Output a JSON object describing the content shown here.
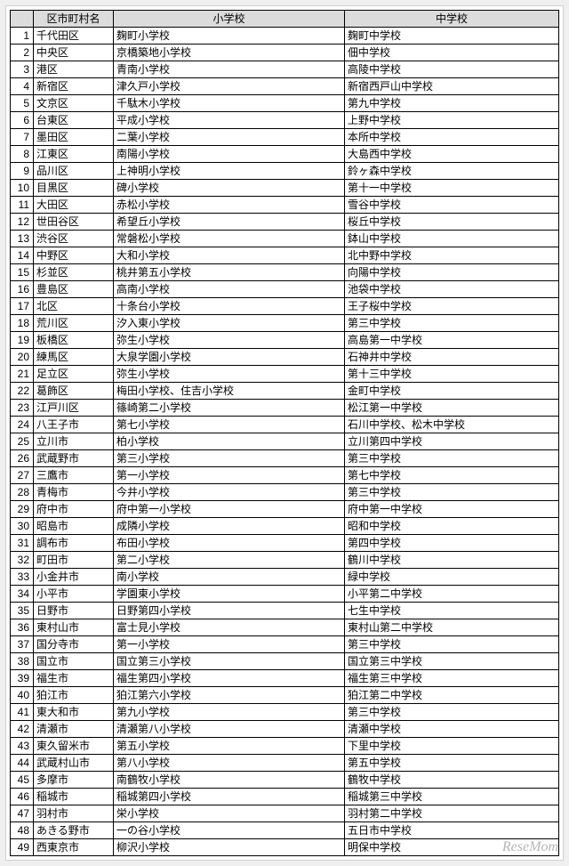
{
  "watermark": "ReseMom",
  "table": {
    "headers": {
      "num": "",
      "ward": "区市町村名",
      "elem": "小学校",
      "jhs": "中学校"
    },
    "rows": [
      {
        "n": "1",
        "ward": "千代田区",
        "elem": "麹町小学校",
        "jhs": "麹町中学校"
      },
      {
        "n": "2",
        "ward": "中央区",
        "elem": "京橋築地小学校",
        "jhs": "佃中学校"
      },
      {
        "n": "3",
        "ward": "港区",
        "elem": "青南小学校",
        "jhs": "高陵中学校"
      },
      {
        "n": "4",
        "ward": "新宿区",
        "elem": "津久戸小学校",
        "jhs": "新宿西戸山中学校"
      },
      {
        "n": "5",
        "ward": "文京区",
        "elem": "千駄木小学校",
        "jhs": "第九中学校"
      },
      {
        "n": "6",
        "ward": "台東区",
        "elem": "平成小学校",
        "jhs": "上野中学校"
      },
      {
        "n": "7",
        "ward": "墨田区",
        "elem": "二葉小学校",
        "jhs": "本所中学校"
      },
      {
        "n": "8",
        "ward": "江東区",
        "elem": "南陽小学校",
        "jhs": "大島西中学校"
      },
      {
        "n": "9",
        "ward": "品川区",
        "elem": "上神明小学校",
        "jhs": "鈴ヶ森中学校"
      },
      {
        "n": "10",
        "ward": "目黒区",
        "elem": "碑小学校",
        "jhs": "第十一中学校"
      },
      {
        "n": "11",
        "ward": "大田区",
        "elem": "赤松小学校",
        "jhs": "雪谷中学校"
      },
      {
        "n": "12",
        "ward": "世田谷区",
        "elem": "希望丘小学校",
        "jhs": "桜丘中学校"
      },
      {
        "n": "13",
        "ward": "渋谷区",
        "elem": "常磐松小学校",
        "jhs": "鉢山中学校"
      },
      {
        "n": "14",
        "ward": "中野区",
        "elem": "大和小学校",
        "jhs": "北中野中学校"
      },
      {
        "n": "15",
        "ward": "杉並区",
        "elem": "桃井第五小学校",
        "jhs": "向陽中学校"
      },
      {
        "n": "16",
        "ward": "豊島区",
        "elem": "高南小学校",
        "jhs": "池袋中学校"
      },
      {
        "n": "17",
        "ward": "北区",
        "elem": "十条台小学校",
        "jhs": "王子桜中学校"
      },
      {
        "n": "18",
        "ward": "荒川区",
        "elem": "汐入東小学校",
        "jhs": "第三中学校"
      },
      {
        "n": "19",
        "ward": "板橋区",
        "elem": "弥生小学校",
        "jhs": "高島第一中学校"
      },
      {
        "n": "20",
        "ward": "練馬区",
        "elem": "大泉学園小学校",
        "jhs": "石神井中学校"
      },
      {
        "n": "21",
        "ward": "足立区",
        "elem": "弥生小学校",
        "jhs": "第十三中学校"
      },
      {
        "n": "22",
        "ward": "葛飾区",
        "elem": "梅田小学校、住吉小学校",
        "jhs": "金町中学校"
      },
      {
        "n": "23",
        "ward": "江戸川区",
        "elem": "篠崎第二小学校",
        "jhs": "松江第一中学校"
      },
      {
        "n": "24",
        "ward": "八王子市",
        "elem": "第七小学校",
        "jhs": "石川中学校、松木中学校"
      },
      {
        "n": "25",
        "ward": "立川市",
        "elem": "柏小学校",
        "jhs": "立川第四中学校"
      },
      {
        "n": "26",
        "ward": "武蔵野市",
        "elem": "第三小学校",
        "jhs": "第三中学校"
      },
      {
        "n": "27",
        "ward": "三鷹市",
        "elem": "第一小学校",
        "jhs": "第七中学校"
      },
      {
        "n": "28",
        "ward": "青梅市",
        "elem": "今井小学校",
        "jhs": "第三中学校"
      },
      {
        "n": "29",
        "ward": "府中市",
        "elem": "府中第一小学校",
        "jhs": "府中第一中学校"
      },
      {
        "n": "30",
        "ward": "昭島市",
        "elem": "成隣小学校",
        "jhs": "昭和中学校"
      },
      {
        "n": "31",
        "ward": "調布市",
        "elem": "布田小学校",
        "jhs": "第四中学校"
      },
      {
        "n": "32",
        "ward": "町田市",
        "elem": "第二小学校",
        "jhs": "鶴川中学校"
      },
      {
        "n": "33",
        "ward": "小金井市",
        "elem": "南小学校",
        "jhs": "緑中学校"
      },
      {
        "n": "34",
        "ward": "小平市",
        "elem": "学園東小学校",
        "jhs": "小平第二中学校"
      },
      {
        "n": "35",
        "ward": "日野市",
        "elem": "日野第四小学校",
        "jhs": "七生中学校"
      },
      {
        "n": "36",
        "ward": "東村山市",
        "elem": "富士見小学校",
        "jhs": "東村山第二中学校"
      },
      {
        "n": "37",
        "ward": "国分寺市",
        "elem": "第一小学校",
        "jhs": "第三中学校"
      },
      {
        "n": "38",
        "ward": "国立市",
        "elem": "国立第三小学校",
        "jhs": "国立第三中学校"
      },
      {
        "n": "39",
        "ward": "福生市",
        "elem": "福生第四小学校",
        "jhs": "福生第三中学校"
      },
      {
        "n": "40",
        "ward": "狛江市",
        "elem": "狛江第六小学校",
        "jhs": "狛江第二中学校"
      },
      {
        "n": "41",
        "ward": "東大和市",
        "elem": "第九小学校",
        "jhs": "第三中学校"
      },
      {
        "n": "42",
        "ward": "清瀬市",
        "elem": "清瀬第八小学校",
        "jhs": "清瀬中学校"
      },
      {
        "n": "43",
        "ward": "東久留米市",
        "elem": "第五小学校",
        "jhs": "下里中学校"
      },
      {
        "n": "44",
        "ward": "武蔵村山市",
        "elem": "第八小学校",
        "jhs": "第五中学校"
      },
      {
        "n": "45",
        "ward": "多摩市",
        "elem": "南鶴牧小学校",
        "jhs": "鶴牧中学校"
      },
      {
        "n": "46",
        "ward": "稲城市",
        "elem": "稲城第四小学校",
        "jhs": "稲城第三中学校"
      },
      {
        "n": "47",
        "ward": "羽村市",
        "elem": "栄小学校",
        "jhs": "羽村第二中学校"
      },
      {
        "n": "48",
        "ward": "あきる野市",
        "elem": "一の谷小学校",
        "jhs": "五日市中学校"
      },
      {
        "n": "49",
        "ward": "西東京市",
        "elem": "柳沢小学校",
        "jhs": "明保中学校"
      }
    ]
  }
}
